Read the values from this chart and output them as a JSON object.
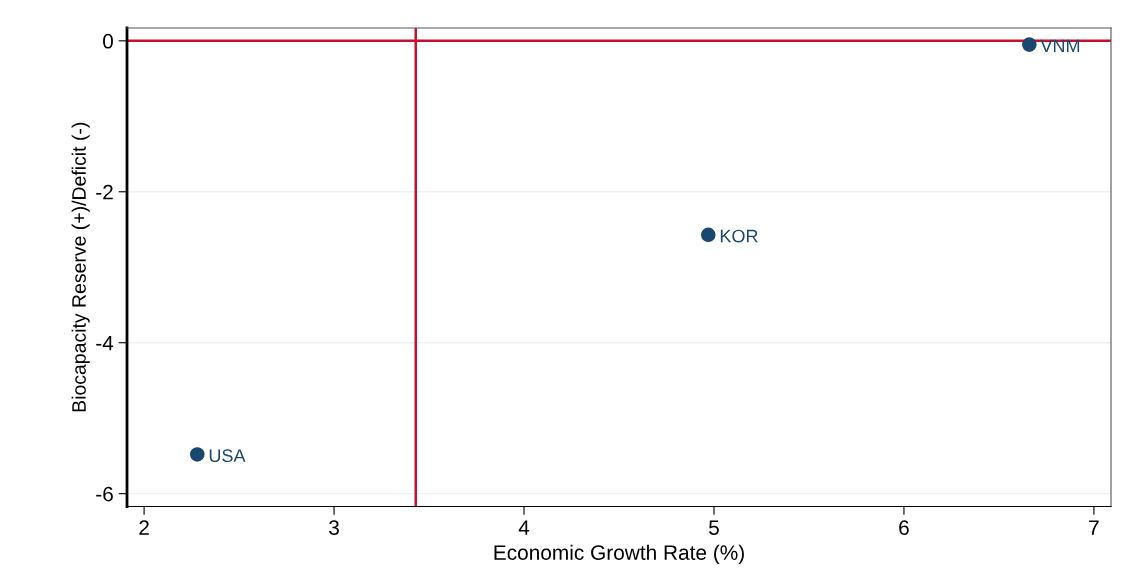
{
  "chart_data": {
    "type": "scatter",
    "xlabel": "Economic Growth Rate (%)",
    "ylabel": "Biocapacity Reserve (+)/Deficit (-)",
    "x": [
      2.28,
      4.97,
      6.66
    ],
    "series": [
      {
        "color": "#1a476f",
        "values": [
          -5.48,
          -2.57,
          -0.05
        ],
        "value_labels": [
          "USA",
          "KOR",
          "VNM"
        ]
      }
    ],
    "xlim": [
      1.91,
      7.09
    ],
    "ylim": [
      -6.17,
      0.17
    ],
    "xticks": [
      2,
      3,
      4,
      5,
      6,
      7
    ],
    "yticks": [
      -6,
      -4,
      -2,
      0
    ],
    "ref_lines": [
      {
        "axis": "x",
        "value": 3.43,
        "color": "#c8102e"
      },
      {
        "axis": "y",
        "value": 0,
        "color": "#c8102e"
      }
    ],
    "grid": "y",
    "marker": "circle",
    "legend": false
  }
}
